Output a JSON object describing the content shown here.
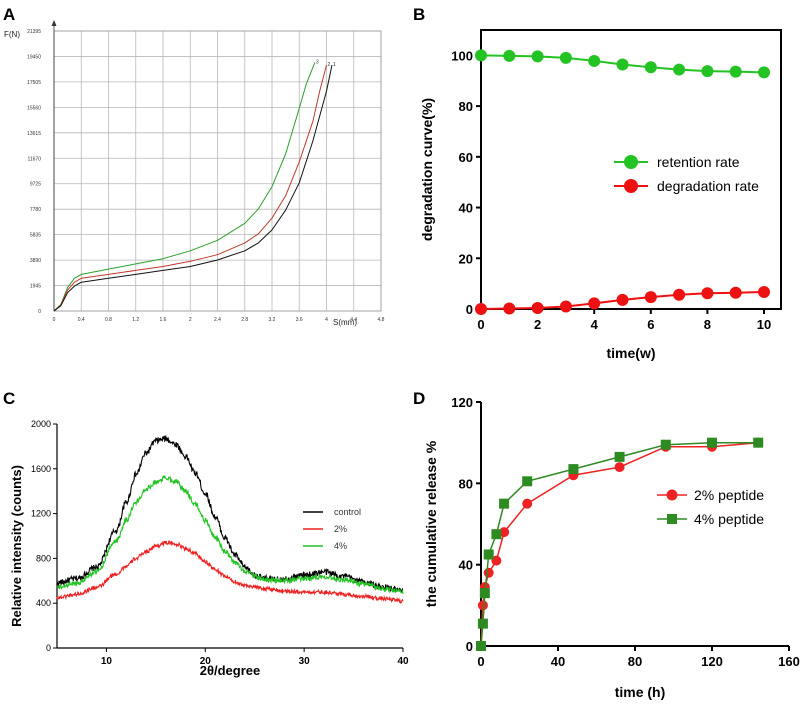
{
  "panel_labels": {
    "a": "A",
    "b": "B",
    "c": "C",
    "d": "D"
  },
  "chart_data": [
    {
      "panel": "A",
      "type": "line",
      "xlabel": "S(mm)",
      "ylabel": "F(N)",
      "xlim": [
        0,
        4.8
      ],
      "ylim": [
        0,
        21395
      ],
      "x_ticks": [
        "0",
        "0.4",
        "0.8",
        "1.2",
        "1.6",
        "2",
        "2.4",
        "2.8",
        "3.2",
        "3.6",
        "4",
        "4.4",
        "4.8"
      ],
      "x_tick_values": [
        0,
        0.4,
        0.8,
        1.2,
        1.6,
        2,
        2.4,
        2.8,
        3.2,
        3.6,
        4,
        4.4,
        4.8
      ],
      "y_ticks": [
        "0",
        "1945",
        "3890",
        "5835",
        "7780",
        "9725",
        "11670",
        "13615",
        "15560",
        "17505",
        "19450",
        "21395"
      ],
      "y_tick_values": [
        0,
        1945,
        3890,
        5835,
        7780,
        9725,
        11670,
        13615,
        15560,
        17505,
        19450,
        21395
      ],
      "series": [
        {
          "name": "3",
          "color": "#2ca02c",
          "x": [
            0,
            0.1,
            0.2,
            0.3,
            0.4,
            0.8,
            1.2,
            1.6,
            2.0,
            2.4,
            2.8,
            3.0,
            3.2,
            3.4,
            3.6,
            3.7,
            3.83
          ],
          "y": [
            0,
            500,
            1800,
            2500,
            2800,
            3200,
            3600,
            4000,
            4600,
            5400,
            6700,
            7800,
            9500,
            12000,
            15500,
            17300,
            19000
          ]
        },
        {
          "name": "2",
          "color": "#c0392b",
          "x": [
            0,
            0.1,
            0.2,
            0.3,
            0.4,
            0.8,
            1.2,
            1.6,
            2.0,
            2.4,
            2.8,
            3.0,
            3.2,
            3.4,
            3.6,
            3.8,
            3.9,
            4.0
          ],
          "y": [
            0,
            450,
            1600,
            2200,
            2500,
            2800,
            3100,
            3400,
            3800,
            4300,
            5200,
            5900,
            7100,
            8800,
            11400,
            14500,
            16800,
            18800
          ]
        },
        {
          "name": "1",
          "color": "#111111",
          "x": [
            0,
            0.1,
            0.2,
            0.3,
            0.4,
            0.8,
            1.2,
            1.6,
            2.0,
            2.4,
            2.8,
            3.0,
            3.2,
            3.4,
            3.6,
            3.8,
            4.0,
            4.08
          ],
          "y": [
            0,
            400,
            1400,
            1900,
            2200,
            2500,
            2800,
            3100,
            3400,
            3900,
            4600,
            5200,
            6200,
            7700,
            9800,
            13000,
            16800,
            18800
          ]
        }
      ]
    },
    {
      "panel": "B",
      "type": "line",
      "xlabel": "time(w)",
      "ylabel": "degradation curve(%)",
      "xlim": [
        0,
        10.6
      ],
      "ylim": [
        0,
        110
      ],
      "x_ticks": [
        "0",
        "2",
        "4",
        "6",
        "8",
        "10"
      ],
      "x_tick_values": [
        0,
        2,
        4,
        6,
        8,
        10
      ],
      "y_ticks": [
        "0",
        "20",
        "40",
        "60",
        "80",
        "100"
      ],
      "y_tick_values": [
        0,
        20,
        40,
        60,
        80,
        100
      ],
      "legend": "right",
      "series": [
        {
          "name": "retention rate",
          "color": "#22c322",
          "x": [
            0,
            1,
            2,
            3,
            4,
            5,
            6,
            7,
            8,
            9,
            10
          ],
          "y": [
            100,
            99.8,
            99.6,
            99,
            97.8,
            96.4,
            95.3,
            94.4,
            93.8,
            93.6,
            93.3
          ]
        },
        {
          "name": "degradation rate",
          "color": "#ee1111",
          "x": [
            0,
            1,
            2,
            3,
            4,
            5,
            6,
            7,
            8,
            9,
            10
          ],
          "y": [
            0,
            0.2,
            0.4,
            1.0,
            2.2,
            3.6,
            4.7,
            5.6,
            6.2,
            6.4,
            6.7
          ]
        }
      ]
    },
    {
      "panel": "C",
      "type": "line",
      "xlabel": "2θ/degree",
      "ylabel": "Relative intensity (counts)",
      "xlim": [
        5,
        40
      ],
      "ylim": [
        0,
        2000
      ],
      "x_ticks": [
        "10",
        "20",
        "30",
        "40"
      ],
      "x_tick_values": [
        10,
        20,
        30,
        40
      ],
      "y_ticks": [
        "0",
        "400",
        "800",
        "1200",
        "1600",
        "2000"
      ],
      "y_tick_values": [
        0,
        400,
        800,
        1200,
        1600,
        2000
      ],
      "legend": "right",
      "series": [
        {
          "name": "control",
          "color": "#000000",
          "x": [
            5,
            7,
            9,
            11,
            12,
            13,
            14,
            15,
            16,
            17,
            18,
            19,
            20,
            21,
            22,
            23,
            24,
            25,
            26,
            27,
            28,
            30,
            32,
            34,
            36,
            38,
            40
          ],
          "y": [
            580,
            620,
            720,
            1050,
            1300,
            1550,
            1740,
            1850,
            1870,
            1820,
            1710,
            1560,
            1380,
            1170,
            980,
            830,
            720,
            650,
            620,
            610,
            620,
            650,
            680,
            640,
            590,
            540,
            510
          ]
        },
        {
          "name": "2%",
          "color": "#ee2222",
          "x": [
            5,
            7,
            9,
            11,
            12,
            13,
            14,
            15,
            16,
            17,
            18,
            19,
            20,
            21,
            22,
            23,
            24,
            26,
            28,
            30,
            32,
            34,
            36,
            38,
            40
          ],
          "y": [
            450,
            480,
            540,
            660,
            730,
            800,
            860,
            910,
            940,
            930,
            890,
            840,
            770,
            700,
            640,
            590,
            560,
            530,
            510,
            500,
            500,
            480,
            460,
            440,
            420
          ]
        },
        {
          "name": "4%",
          "color": "#22c322",
          "x": [
            5,
            7,
            9,
            11,
            12,
            13,
            14,
            15,
            16,
            17,
            18,
            19,
            20,
            21,
            22,
            23,
            24,
            25,
            26,
            28,
            30,
            32,
            34,
            36,
            38,
            40
          ],
          "y": [
            540,
            580,
            680,
            960,
            1140,
            1300,
            1420,
            1480,
            1520,
            1490,
            1400,
            1280,
            1140,
            990,
            860,
            760,
            690,
            640,
            610,
            600,
            620,
            640,
            610,
            570,
            530,
            500
          ]
        }
      ]
    },
    {
      "panel": "D",
      "type": "line",
      "xlabel": "time (h)",
      "ylabel": "the cumulative release %",
      "xlim": [
        0,
        160
      ],
      "ylim": [
        0,
        120
      ],
      "x_ticks": [
        "0",
        "40",
        "80",
        "120",
        "160"
      ],
      "x_tick_values": [
        0,
        40,
        80,
        120,
        160
      ],
      "y_ticks": [
        "0",
        "40",
        "80",
        "120"
      ],
      "y_tick_values": [
        0,
        40,
        80,
        120
      ],
      "legend": "right",
      "series": [
        {
          "name": "2% peptide",
          "color": "#ee2222",
          "marker": "circle",
          "x": [
            0,
            1,
            2,
            4,
            8,
            12,
            24,
            48,
            72,
            96,
            120,
            144
          ],
          "y": [
            0,
            20,
            29,
            36,
            42,
            56,
            70,
            84,
            88,
            98,
            98,
            100
          ]
        },
        {
          "name": "4% peptide",
          "color": "#2e8b22",
          "marker": "square",
          "x": [
            0,
            1,
            2,
            4,
            8,
            12,
            24,
            48,
            72,
            96,
            120,
            144
          ],
          "y": [
            0,
            11,
            26,
            45,
            55,
            70,
            81,
            87,
            93,
            99,
            100,
            100
          ]
        }
      ]
    }
  ]
}
